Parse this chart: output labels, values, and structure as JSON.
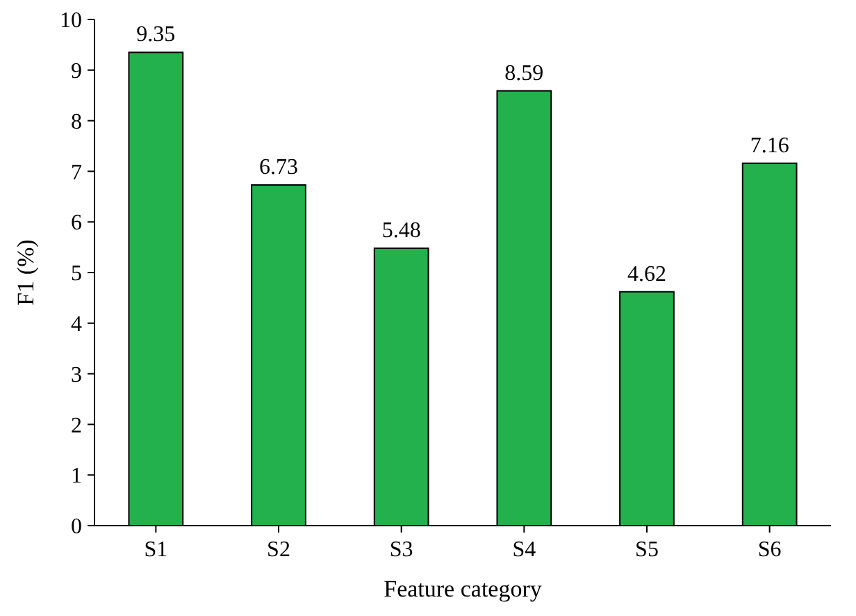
{
  "chart_data": {
    "type": "bar",
    "xlabel": "Feature category",
    "ylabel": "F1 (%)",
    "categories": [
      "S1",
      "S2",
      "S3",
      "S4",
      "S5",
      "S6"
    ],
    "values": [
      9.35,
      6.73,
      5.48,
      8.59,
      4.62,
      7.16
    ],
    "color": "#22b14c",
    "ylim": [
      0,
      10
    ],
    "yticks": [
      0,
      1,
      2,
      3,
      4,
      5,
      6,
      7,
      8,
      9,
      10
    ],
    "data_labels": true
  }
}
